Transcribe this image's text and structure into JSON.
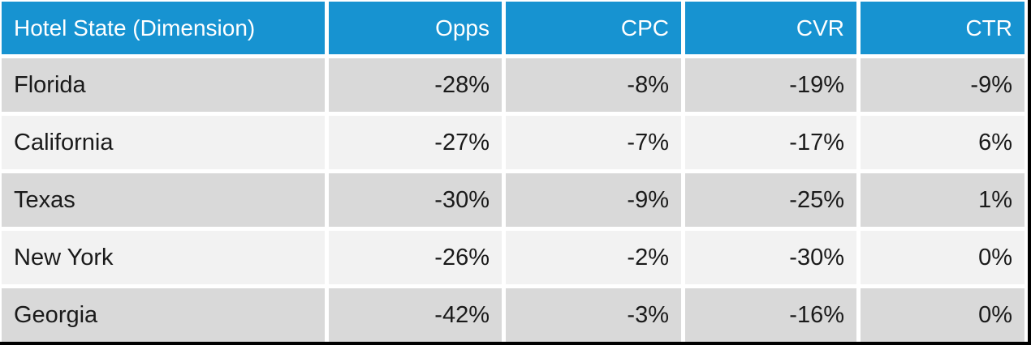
{
  "table": {
    "columns": [
      {
        "label": "Hotel State (Dimension)"
      },
      {
        "label": "Opps"
      },
      {
        "label": "CPC"
      },
      {
        "label": "CVR"
      },
      {
        "label": "CTR"
      }
    ],
    "rows": [
      {
        "cells": [
          "Florida",
          "-28%",
          "-8%",
          "-19%",
          "-9%"
        ]
      },
      {
        "cells": [
          "California",
          "-27%",
          "-7%",
          "-17%",
          "6%"
        ]
      },
      {
        "cells": [
          "Texas",
          "-30%",
          "-9%",
          "-25%",
          "1%"
        ]
      },
      {
        "cells": [
          "New York",
          "-26%",
          "-2%",
          "-30%",
          "0%"
        ]
      },
      {
        "cells": [
          "Georgia",
          "-42%",
          "-3%",
          "-16%",
          "0%"
        ]
      }
    ]
  },
  "colors": {
    "header_bg": "#1793d1",
    "header_text": "#ffffff",
    "row_odd_bg": "#d9d9d9",
    "row_even_bg": "#f2f2f2",
    "body_text": "#1a1a1a",
    "separator": "#ffffff",
    "outer_border": "#000000"
  },
  "chart_data": {
    "type": "table",
    "title": "",
    "columns": [
      "Hotel State (Dimension)",
      "Opps",
      "CPC",
      "CVR",
      "CTR"
    ],
    "rows": [
      [
        "Florida",
        "-28%",
        "-8%",
        "-19%",
        "-9%"
      ],
      [
        "California",
        "-27%",
        "-7%",
        "-17%",
        "6%"
      ],
      [
        "Texas",
        "-30%",
        "-9%",
        "-25%",
        "1%"
      ],
      [
        "New York",
        "-26%",
        "-2%",
        "-30%",
        "0%"
      ],
      [
        "Georgia",
        "-42%",
        "-3%",
        "-16%",
        "0%"
      ]
    ],
    "notes": "Percent deltas per hotel state; header row blue, body rows alternate gray/light-gray, value columns right-aligned"
  }
}
